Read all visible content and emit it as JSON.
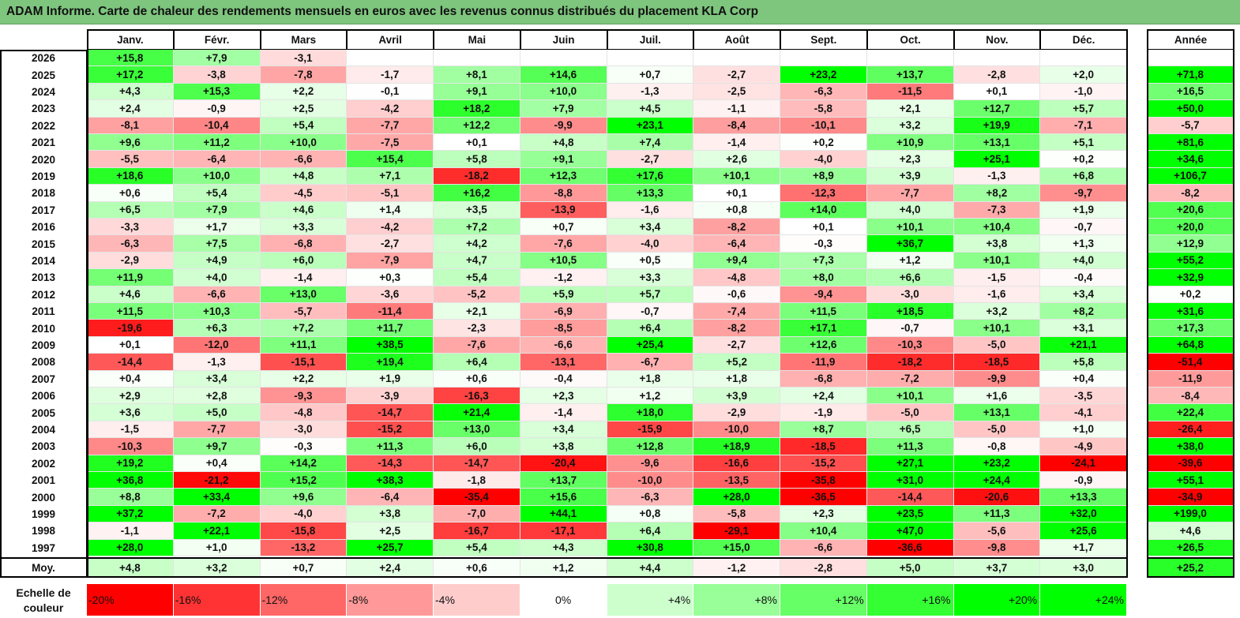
{
  "title": "ADAM Informe. Carte de chaleur des rendements mensuels en euros avec les revenus connus distribués du placement KLA Corp",
  "colors": {
    "title_bg": "#7ec57e",
    "red": "#ff0000",
    "green": "#00ff00",
    "white": "#ffffff"
  },
  "chart_data": {
    "type": "heatmap",
    "title": "ADAM Informe. Carte de chaleur des rendements mensuels en euros avec les revenus connus distribués du placement KLA Corp",
    "columns": [
      "Janv.",
      "Févr.",
      "Mars",
      "Avril",
      "Mai",
      "Juin",
      "Juil.",
      "Août",
      "Sept.",
      "Oct.",
      "Nov.",
      "Déc."
    ],
    "year_column": "Année",
    "rows": [
      {
        "year": "2026",
        "values": [
          "+15,8",
          "+7,9",
          "-3,1",
          "",
          "",
          "",
          "",
          "",
          "",
          "",
          "",
          ""
        ],
        "annual": ""
      },
      {
        "year": "2025",
        "values": [
          "+17,2",
          "-3,8",
          "-7,8",
          "-1,7",
          "+8,1",
          "+14,6",
          "+0,7",
          "-2,7",
          "+23,2",
          "+13,7",
          "-2,8",
          "+2,0"
        ],
        "annual": "+71,8"
      },
      {
        "year": "2024",
        "values": [
          "+4,3",
          "+15,3",
          "+2,2",
          "-0,1",
          "+9,1",
          "+10,0",
          "-1,3",
          "-2,5",
          "-6,3",
          "-11,5",
          "+0,1",
          "-1,0"
        ],
        "annual": "+16,5"
      },
      {
        "year": "2023",
        "values": [
          "+2,4",
          "-0,9",
          "+2,5",
          "-4,2",
          "+18,2",
          "+7,9",
          "+4,5",
          "-1,1",
          "-5,8",
          "+2,1",
          "+12,7",
          "+5,7"
        ],
        "annual": "+50,0"
      },
      {
        "year": "2022",
        "values": [
          "-8,1",
          "-10,4",
          "+5,4",
          "-7,7",
          "+12,2",
          "-9,9",
          "+23,1",
          "-8,4",
          "-10,1",
          "+3,2",
          "+19,9",
          "-7,1"
        ],
        "annual": "-5,7"
      },
      {
        "year": "2021",
        "values": [
          "+9,6",
          "+11,2",
          "+10,0",
          "-7,5",
          "+0,1",
          "+4,8",
          "+7,4",
          "-1,4",
          "+0,2",
          "+10,9",
          "+13,1",
          "+5,1"
        ],
        "annual": "+81,6"
      },
      {
        "year": "2020",
        "values": [
          "-5,5",
          "-6,4",
          "-6,6",
          "+15,4",
          "+5,8",
          "+9,1",
          "-2,7",
          "+2,6",
          "-4,0",
          "+2,3",
          "+25,1",
          "+0,2"
        ],
        "annual": "+34,6"
      },
      {
        "year": "2019",
        "values": [
          "+18,6",
          "+10,0",
          "+4,8",
          "+7,1",
          "-18,2",
          "+12,3",
          "+17,6",
          "+10,1",
          "+8,9",
          "+3,9",
          "-1,3",
          "+6,8"
        ],
        "annual": "+106,7"
      },
      {
        "year": "2018",
        "values": [
          "+0,6",
          "+5,4",
          "-4,5",
          "-5,1",
          "+16,2",
          "-8,8",
          "+13,3",
          "+0,1",
          "-12,3",
          "-7,7",
          "+8,2",
          "-9,7"
        ],
        "annual": "-8,2"
      },
      {
        "year": "2017",
        "values": [
          "+6,5",
          "+7,9",
          "+4,6",
          "+1,4",
          "+3,5",
          "-13,9",
          "-1,6",
          "+0,8",
          "+14,0",
          "+4,0",
          "-7,3",
          "+1,9"
        ],
        "annual": "+20,6"
      },
      {
        "year": "2016",
        "values": [
          "-3,3",
          "+1,7",
          "+3,3",
          "-4,2",
          "+7,2",
          "+0,7",
          "+3,4",
          "-8,2",
          "+0,1",
          "+10,1",
          "+10,4",
          "-0,7"
        ],
        "annual": "+20,0"
      },
      {
        "year": "2015",
        "values": [
          "-6,3",
          "+7,5",
          "-6,8",
          "-2,7",
          "+4,2",
          "-7,6",
          "-4,0",
          "-6,4",
          "-0,3",
          "+36,7",
          "+3,8",
          "+1,3"
        ],
        "annual": "+12,9"
      },
      {
        "year": "2014",
        "values": [
          "-2,9",
          "+4,9",
          "+6,0",
          "-7,9",
          "+4,7",
          "+10,5",
          "+0,5",
          "+9,4",
          "+7,3",
          "+1,2",
          "+10,1",
          "+4,0"
        ],
        "annual": "+55,2"
      },
      {
        "year": "2013",
        "values": [
          "+11,9",
          "+4,0",
          "-1,4",
          "+0,3",
          "+5,4",
          "-1,2",
          "+3,3",
          "-4,8",
          "+8,0",
          "+6,6",
          "-1,5",
          "-0,4"
        ],
        "annual": "+32,9"
      },
      {
        "year": "2012",
        "values": [
          "+4,6",
          "-6,6",
          "+13,0",
          "-3,6",
          "-5,2",
          "+5,9",
          "+5,7",
          "-0,6",
          "-9,4",
          "-3,0",
          "-1,6",
          "+3,4"
        ],
        "annual": "+0,2"
      },
      {
        "year": "2011",
        "values": [
          "+11,5",
          "+10,3",
          "-5,7",
          "-11,4",
          "+2,1",
          "-6,9",
          "-0,7",
          "-7,4",
          "+11,5",
          "+18,5",
          "+3,2",
          "+8,2"
        ],
        "annual": "+31,6"
      },
      {
        "year": "2010",
        "values": [
          "-19,6",
          "+6,3",
          "+7,2",
          "+11,7",
          "-2,3",
          "-8,5",
          "+6,4",
          "-8,2",
          "+17,1",
          "-0,7",
          "+10,1",
          "+3,1"
        ],
        "annual": "+17,3"
      },
      {
        "year": "2009",
        "values": [
          "+0,1",
          "-12,0",
          "+11,1",
          "+38,5",
          "-7,6",
          "-6,6",
          "+25,4",
          "-2,7",
          "+12,6",
          "-10,3",
          "-5,0",
          "+21,1"
        ],
        "annual": "+64,8"
      },
      {
        "year": "2008",
        "values": [
          "-14,4",
          "-1,3",
          "-15,1",
          "+19,4",
          "+6,4",
          "-13,1",
          "-6,7",
          "+5,2",
          "-11,9",
          "-18,2",
          "-18,5",
          "+5,8"
        ],
        "annual": "-51,4"
      },
      {
        "year": "2007",
        "values": [
          "+0,4",
          "+3,4",
          "+2,2",
          "+1,9",
          "+0,6",
          "-0,4",
          "+1,8",
          "+1,8",
          "-6,8",
          "-7,2",
          "-9,9",
          "+0,4"
        ],
        "annual": "-11,9"
      },
      {
        "year": "2006",
        "values": [
          "+2,9",
          "+2,8",
          "-9,3",
          "-3,9",
          "-16,3",
          "+2,3",
          "+1,2",
          "+3,9",
          "+2,4",
          "+10,1",
          "+1,6",
          "-3,5"
        ],
        "annual": "-8,4"
      },
      {
        "year": "2005",
        "values": [
          "+3,6",
          "+5,0",
          "-4,8",
          "-14,7",
          "+21,4",
          "-1,4",
          "+18,0",
          "-2,9",
          "-1,9",
          "-5,0",
          "+13,1",
          "-4,1"
        ],
        "annual": "+22,4"
      },
      {
        "year": "2004",
        "values": [
          "-1,5",
          "-7,7",
          "-3,0",
          "-15,2",
          "+13,0",
          "+3,4",
          "-15,9",
          "-10,0",
          "+8,7",
          "+6,5",
          "-5,0",
          "+1,0"
        ],
        "annual": "-26,4"
      },
      {
        "year": "2003",
        "values": [
          "-10,3",
          "+9,7",
          "-0,3",
          "+11,3",
          "+6,0",
          "+3,8",
          "+12,8",
          "+18,9",
          "-18,5",
          "+11,3",
          "-0,8",
          "-4,9"
        ],
        "annual": "+38,0"
      },
      {
        "year": "2002",
        "values": [
          "+19,2",
          "+0,4",
          "+14,2",
          "-14,3",
          "-14,7",
          "-20,4",
          "-9,6",
          "-16,6",
          "-15,2",
          "+27,1",
          "+23,2",
          "-24,1"
        ],
        "annual": "-39,6"
      },
      {
        "year": "2001",
        "values": [
          "+36,8",
          "-21,2",
          "+15,2",
          "+38,3",
          "-1,8",
          "+13,7",
          "-10,0",
          "-13,5",
          "-35,8",
          "+31,0",
          "+24,4",
          "-0,9"
        ],
        "annual": "+55,1"
      },
      {
        "year": "2000",
        "values": [
          "+8,8",
          "+33,4",
          "+9,6",
          "-6,4",
          "-35,4",
          "+15,6",
          "-6,3",
          "+28,0",
          "-36,5",
          "-14,4",
          "-20,6",
          "+13,3"
        ],
        "annual": "-34,9"
      },
      {
        "year": "1999",
        "values": [
          "+37,2",
          "-7,2",
          "-4,0",
          "+3,8",
          "-7,0",
          "+44,1",
          "+0,8",
          "-5,8",
          "+2,3",
          "+23,5",
          "+11,3",
          "+32,0"
        ],
        "annual": "+199,0"
      },
      {
        "year": "1998",
        "values": [
          "-1,1",
          "+22,1",
          "-15,8",
          "+2,5",
          "-16,7",
          "-17,1",
          "+6,4",
          "-29,1",
          "+10,4",
          "+47,0",
          "-5,6",
          "+25,6"
        ],
        "annual": "+4,6"
      },
      {
        "year": "1997",
        "values": [
          "+28,0",
          "+1,0",
          "-13,2",
          "+25,7",
          "+5,4",
          "+4,3",
          "+30,8",
          "+15,0",
          "-6,6",
          "-36,6",
          "-9,8",
          "+1,7"
        ],
        "annual": "+26,5"
      }
    ],
    "average": {
      "label": "Moy.",
      "values": [
        "+4,8",
        "+3,2",
        "+0,7",
        "+2,4",
        "+0,6",
        "+1,2",
        "+4,4",
        "-1,2",
        "-2,8",
        "+5,0",
        "+3,7",
        "+3,0"
      ],
      "annual": "+25,2"
    },
    "scale": {
      "label_line1": "Echelle de",
      "label_line2": "couleur",
      "steps": [
        "-20%",
        "-16%",
        "-12%",
        "-8%",
        "-4%",
        "0%",
        "+4%",
        "+8%",
        "+12%",
        "+16%",
        "+20%",
        "+24%"
      ],
      "step_values": [
        -20,
        -16,
        -12,
        -8,
        -4,
        0,
        4,
        8,
        12,
        16,
        20,
        24
      ]
    }
  }
}
